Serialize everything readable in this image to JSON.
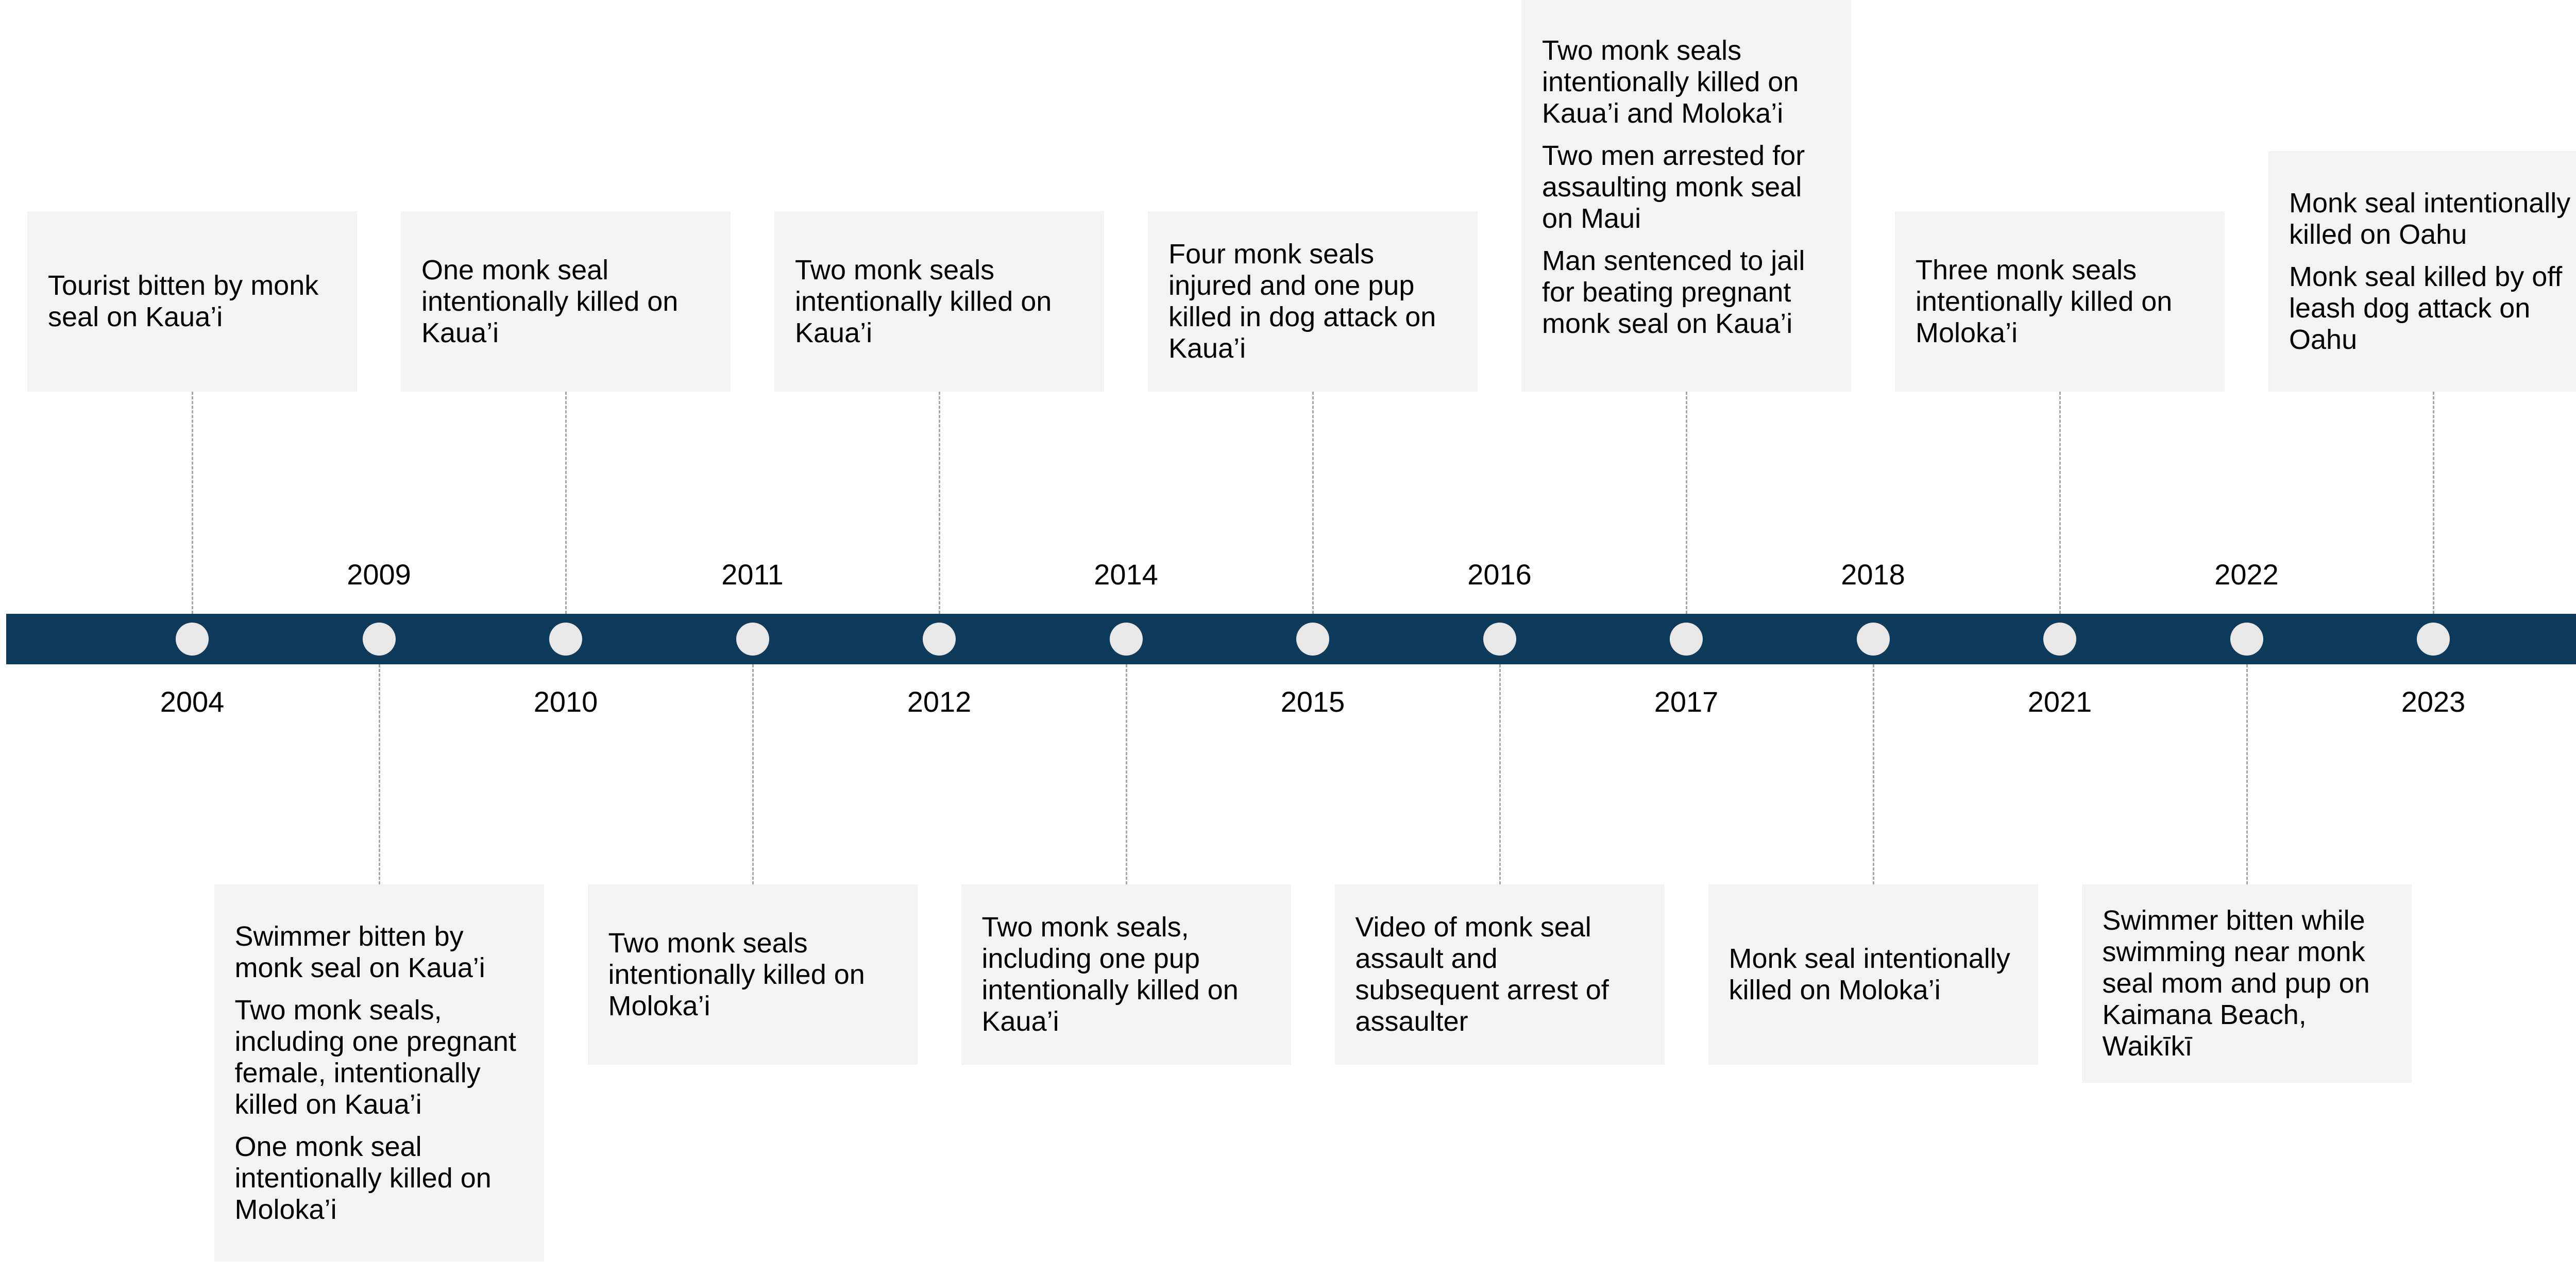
{
  "colors": {
    "bar": "#0e3a5c",
    "dot": "#e8e8e8",
    "card": "#f3f3f3"
  },
  "events": [
    {
      "year": "2004",
      "side": "top",
      "texts": [
        "Tourist bitten by monk seal on Kaua’i"
      ]
    },
    {
      "year": "2009",
      "side": "bottom",
      "texts": [
        "Swimmer bitten by monk seal on Kaua’i",
        "Two monk seals, including one pregnant female, intentionally killed on Kaua’i",
        "One monk seal intentionally killed on Moloka’i"
      ]
    },
    {
      "year": "2010",
      "side": "top",
      "texts": [
        "One monk seal intentionally killed on Kaua’i"
      ]
    },
    {
      "year": "2011",
      "side": "bottom",
      "texts": [
        "Two monk seals intentionally killed on Moloka’i"
      ]
    },
    {
      "year": "2012",
      "side": "top",
      "texts": [
        "Two monk seals intentionally killed on Kaua’i"
      ]
    },
    {
      "year": "2014",
      "side": "bottom",
      "texts": [
        "Two monk seals, including one pup intentionally killed on Kaua’i"
      ]
    },
    {
      "year": "2015",
      "side": "top",
      "texts": [
        "Four monk seals injured and one pup killed in dog attack on Kaua’i"
      ]
    },
    {
      "year": "2016",
      "side": "bottom",
      "texts": [
        "Video of monk seal assault and subsequent arrest of assaulter"
      ]
    },
    {
      "year": "2017",
      "side": "top",
      "texts": [
        "Two monk seals intentionally killed on Kaua’i and Moloka’i",
        "Two men arrested for assaulting monk seal on Maui",
        "Man sentenced to jail for beating pregnant monk seal on Kaua’i"
      ]
    },
    {
      "year": "2018",
      "side": "bottom",
      "texts": [
        "Monk seal intentionally killed on Moloka’i"
      ]
    },
    {
      "year": "2021",
      "side": "top",
      "texts": [
        "Three monk seals intentionally killed on Moloka’i"
      ]
    },
    {
      "year": "2022",
      "side": "bottom",
      "texts": [
        "Swimmer bitten while swimming near monk seal mom and pup on Kaimana Beach, Waikīkī"
      ]
    },
    {
      "year": "2023",
      "side": "top",
      "texts": [
        "Monk seal intentionally killed on Oahu",
        "Monk seal killed by off leash dog attack on Oahu"
      ]
    }
  ]
}
